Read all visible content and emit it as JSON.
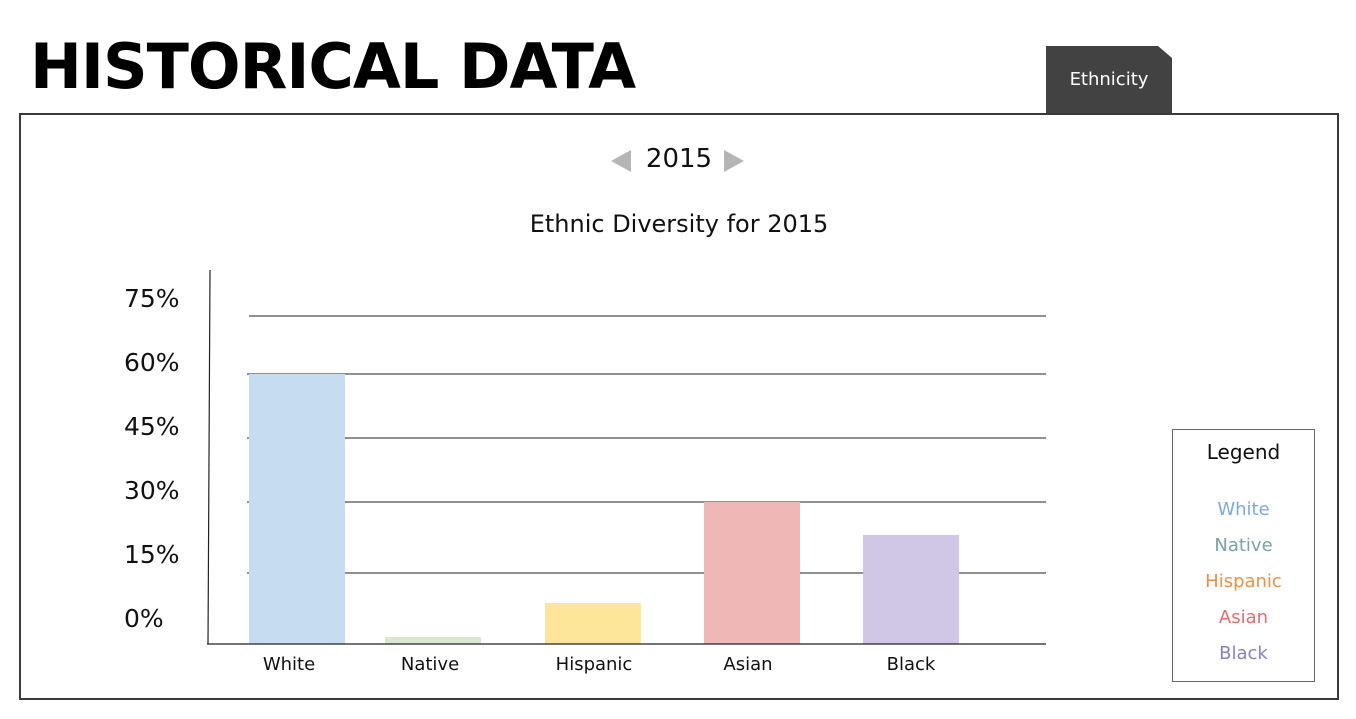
{
  "page": {
    "title": "HISTORICAL DATA",
    "tab_label": "Ethnicity"
  },
  "year_nav": {
    "year": "2015",
    "prev_icon": "triangle-left",
    "next_icon": "triangle-right"
  },
  "chart_data": {
    "type": "bar",
    "title": "Ethnic Diversity for 2015",
    "xlabel": "",
    "ylabel": "",
    "categories": [
      "White",
      "Native",
      "Hispanic",
      "Asian",
      "Black"
    ],
    "values": [
      58,
      1.5,
      9.5,
      29,
      21
    ],
    "colors": [
      "#c6dcf1",
      "#d9e8cf",
      "#fde599",
      "#f0b7b7",
      "#d0c7e6"
    ],
    "y_ticks": [
      "75%",
      "60%",
      "45%",
      "30%",
      "15%",
      "0%"
    ],
    "y_tick_values": [
      75,
      60,
      45,
      30,
      15,
      0
    ],
    "ylim": [
      0,
      75
    ],
    "grid": true
  },
  "legend": {
    "title": "Legend",
    "items": [
      {
        "label": "White",
        "color": "#7fa8de"
      },
      {
        "label": "Native",
        "color": "#78a3a8"
      },
      {
        "label": "Hispanic",
        "color": "#ee9044"
      },
      {
        "label": "Asian",
        "color": "#e36d6d"
      },
      {
        "label": "Black",
        "color": "#8a7fc6"
      }
    ]
  }
}
